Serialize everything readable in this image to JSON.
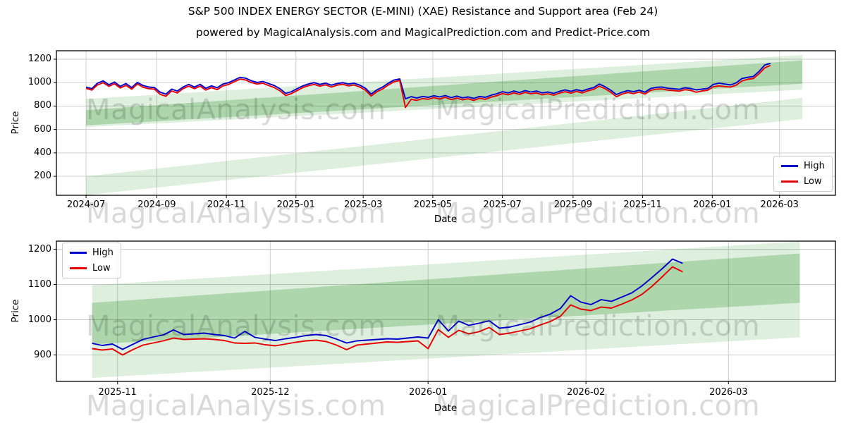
{
  "figure": {
    "title": "S&P 500 INDEX ENERGY SECTOR (E-MINI) (XAE) Resistance and Support area (Feb 24)",
    "subtitle": "powered by MagicalAnalysis.com and MagicalPrediction.com and Predict-Price.com",
    "watermark_left": "MagicalAnalysis.com",
    "watermark_right": "MagicalPrediction.com",
    "background": "#ffffff"
  },
  "legend": {
    "high": "High",
    "low": "Low"
  },
  "colors": {
    "high": "#0000cd",
    "low": "#e80000",
    "band": "#008000",
    "grid": "#c9c9c9",
    "spine": "#000000",
    "watermark": "rgba(0,0,0,0.15)"
  },
  "chart_data": [
    {
      "type": "line",
      "xlabel": "Date",
      "ylabel": "Price",
      "x_start_date": "2024-07-01",
      "x_step_days": 5,
      "xlim": [
        -26,
        657
      ],
      "ylim": [
        38,
        1272
      ],
      "grid": true,
      "legend_position": "center-right",
      "x_ticks": [
        {
          "d": 0,
          "label": "2024-07"
        },
        {
          "d": 62,
          "label": "2024-09"
        },
        {
          "d": 123,
          "label": "2024-11"
        },
        {
          "d": 184,
          "label": "2025-01"
        },
        {
          "d": 243,
          "label": "2025-03"
        },
        {
          "d": 304,
          "label": "2025-05"
        },
        {
          "d": 365,
          "label": "2025-07"
        },
        {
          "d": 427,
          "label": "2025-09"
        },
        {
          "d": 488,
          "label": "2025-11"
        },
        {
          "d": 549,
          "label": "2026-01"
        },
        {
          "d": 608,
          "label": "2026-03"
        }
      ],
      "y_ticks": [
        200,
        400,
        600,
        800,
        1000,
        1200
      ],
      "bands": [
        {
          "x": [
            0,
            628
          ],
          "bottom": [
            40,
            690
          ],
          "top": [
            200,
            870
          ],
          "alpha": 0.13
        },
        {
          "x": [
            0,
            628
          ],
          "bottom": [
            620,
            940
          ],
          "top": [
            860,
            1235
          ],
          "alpha": 0.13
        },
        {
          "x": [
            0,
            628
          ],
          "bottom": [
            635,
            990
          ],
          "top": [
            765,
            1190
          ],
          "alpha": 0.22
        }
      ],
      "series": [
        {
          "name": "High",
          "color_key": "high",
          "x0": 0,
          "values": [
            962,
            948,
            995,
            1015,
            982,
            1005,
            968,
            992,
            958,
            1002,
            975,
            962,
            958,
            918,
            902,
            944,
            928,
            962,
            985,
            962,
            985,
            952,
            972,
            956,
            988,
            1000,
            1022,
            1045,
            1038,
            1015,
            1002,
            1010,
            992,
            975,
            948,
            908,
            922,
            948,
            972,
            988,
            1000,
            985,
            996,
            978,
            992,
            1000,
            988,
            995,
            978,
            952,
            902,
            938,
            962,
            995,
            1022,
            1032,
            862,
            880,
            868,
            882,
            875,
            888,
            878,
            890,
            872,
            885,
            870,
            878,
            865,
            882,
            875,
            892,
            905,
            922,
            912,
            928,
            915,
            932,
            920,
            928,
            912,
            920,
            908,
            925,
            938,
            925,
            940,
            928,
            945,
            958,
            988,
            965,
            935,
            898,
            918,
            932,
            922,
            935,
            918,
            950,
            960,
            962,
            952,
            948,
            943,
            956,
            950,
            938,
            944,
            950,
            985,
            996,
            988,
            980,
            998,
            1035,
            1045,
            1052,
            1095,
            1150,
            1165
          ]
        },
        {
          "name": "Low",
          "color_key": "low",
          "x0": 0,
          "values": [
            950,
            936,
            980,
            1000,
            968,
            990,
            954,
            976,
            944,
            988,
            960,
            948,
            944,
            900,
            884,
            928,
            912,
            948,
            970,
            948,
            970,
            936,
            958,
            940,
            972,
            985,
            1008,
            1030,
            1022,
            1000,
            988,
            995,
            976,
            958,
            930,
            890,
            906,
            932,
            958,
            974,
            985,
            970,
            982,
            962,
            978,
            986,
            972,
            980,
            962,
            935,
            885,
            922,
            946,
            980,
            1008,
            1018,
            788,
            858,
            848,
            864,
            858,
            872,
            860,
            874,
            855,
            868,
            853,
            862,
            848,
            866,
            858,
            876,
            888,
            906,
            896,
            912,
            900,
            916,
            905,
            912,
            896,
            905,
            892,
            910,
            922,
            910,
            925,
            912,
            930,
            942,
            970,
            948,
            918,
            880,
            902,
            916,
            906,
            920,
            902,
            934,
            944,
            946,
            936,
            932,
            927,
            940,
            934,
            918,
            928,
            935,
            965,
            972,
            966,
            962,
            978,
            1014,
            1028,
            1034,
            1075,
            1126,
            1146
          ]
        }
      ]
    },
    {
      "type": "line",
      "xlabel": "Date",
      "ylabel": "Price",
      "x_start_date": "2025-10-27",
      "x_step_days": 2,
      "xlim": [
        -7,
        146
      ],
      "ylim": [
        825,
        1223
      ],
      "grid": true,
      "legend_position": "upper-left",
      "x_ticks": [
        {
          "d": 5,
          "label": "2025-11"
        },
        {
          "d": 35,
          "label": "2025-12"
        },
        {
          "d": 66,
          "label": "2026-01"
        },
        {
          "d": 97,
          "label": "2026-02"
        },
        {
          "d": 125,
          "label": "2026-03"
        }
      ],
      "y_ticks": [
        900,
        1000,
        1100,
        1200
      ],
      "bands": [
        {
          "x": [
            0,
            139
          ],
          "bottom": [
            835,
            950
          ],
          "top": [
            1098,
            1222
          ],
          "alpha": 0.13
        },
        {
          "x": [
            0,
            139
          ],
          "bottom": [
            930,
            1048
          ],
          "top": [
            1048,
            1188
          ],
          "alpha": 0.22
        }
      ],
      "series": [
        {
          "name": "High",
          "color_key": "high",
          "x0": 0,
          "values": [
            933,
            927,
            931,
            916,
            930,
            944,
            951,
            957,
            971,
            958,
            960,
            962,
            958,
            955,
            948,
            967,
            950,
            945,
            941,
            946,
            950,
            955,
            958,
            955,
            945,
            934,
            940,
            942,
            944,
            946,
            945,
            948,
            951,
            948,
            1000,
            968,
            996,
            984,
            990,
            997,
            976,
            979,
            986,
            993,
            1006,
            1016,
            1032,
            1068,
            1050,
            1043,
            1057,
            1052,
            1064,
            1076,
            1096,
            1120,
            1145,
            1172,
            1160
          ]
        },
        {
          "name": "Low",
          "color_key": "low",
          "x0": 0,
          "values": [
            918,
            914,
            917,
            900,
            915,
            928,
            934,
            940,
            948,
            944,
            945,
            946,
            944,
            941,
            934,
            933,
            934,
            929,
            926,
            931,
            936,
            940,
            942,
            938,
            928,
            915,
            928,
            931,
            934,
            937,
            936,
            938,
            940,
            918,
            972,
            950,
            970,
            960,
            966,
            978,
            958,
            962,
            968,
            974,
            985,
            995,
            1010,
            1042,
            1030,
            1026,
            1036,
            1033,
            1044,
            1056,
            1072,
            1095,
            1122,
            1150,
            1136
          ]
        }
      ]
    }
  ]
}
